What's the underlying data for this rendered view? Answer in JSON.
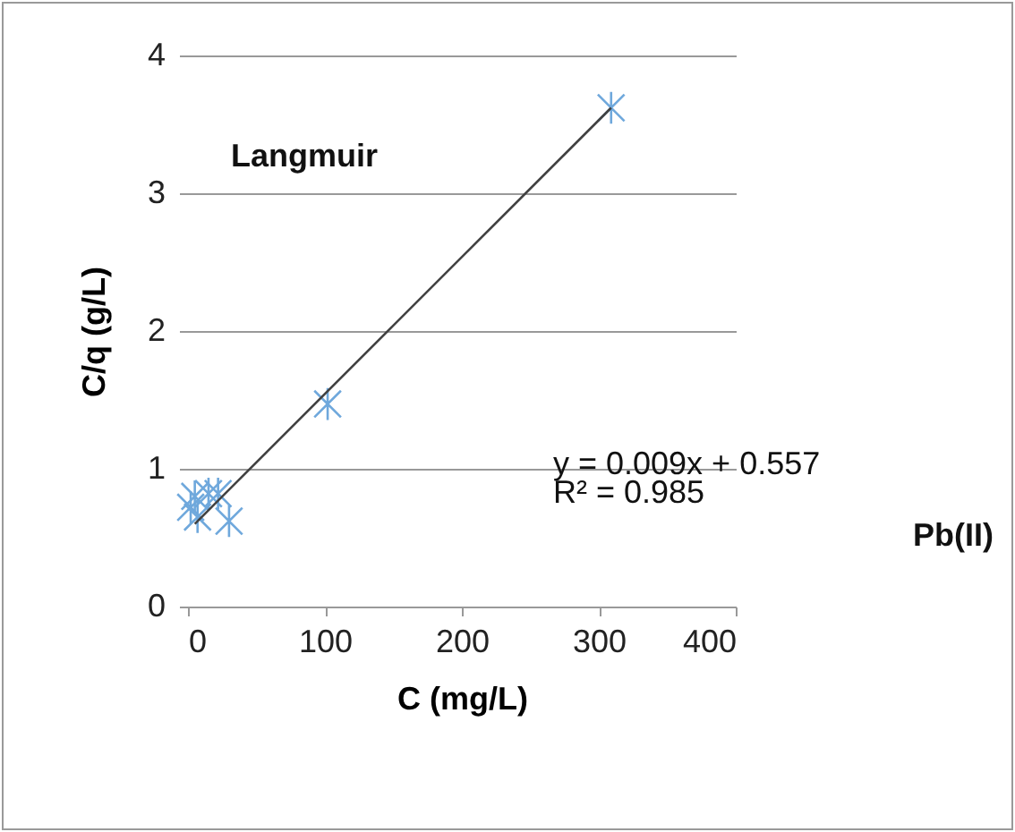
{
  "chart_data": {
    "type": "scatter",
    "xlabel": "C  (mg/L)",
    "ylabel": "C/q  (g/L)",
    "annotations": [
      "Langmuir",
      "y = 0.009x + 0.557",
      "R² = 0.985",
      "Pb(II)"
    ],
    "series": [
      {
        "color": "#6fa8dc",
        "x": [
          2,
          5,
          7,
          15,
          22,
          30,
          102,
          309
        ],
        "values": [
          0.72,
          0.8,
          0.65,
          0.82,
          0.82,
          0.62,
          1.47,
          3.62
        ],
        "marker": "cross"
      },
      {
        "type": "line",
        "color": "#404040",
        "x": [
          5,
          309
        ],
        "values": [
          0.6,
          3.62
        ],
        "marker": "none"
      }
    ],
    "xlim": [
      0,
      400
    ],
    "xticks": [
      0,
      100,
      200,
      300,
      400
    ],
    "ylim": [
      0,
      4
    ],
    "yticks": [
      {
        "value": 0,
        "label": "0"
      },
      {
        "value": 1,
        "label": "1"
      },
      {
        "value": 2,
        "label": "2"
      },
      {
        "value": 3,
        "label": "3"
      },
      {
        "value": 4,
        "label": "4"
      }
    ],
    "grid": "y"
  }
}
